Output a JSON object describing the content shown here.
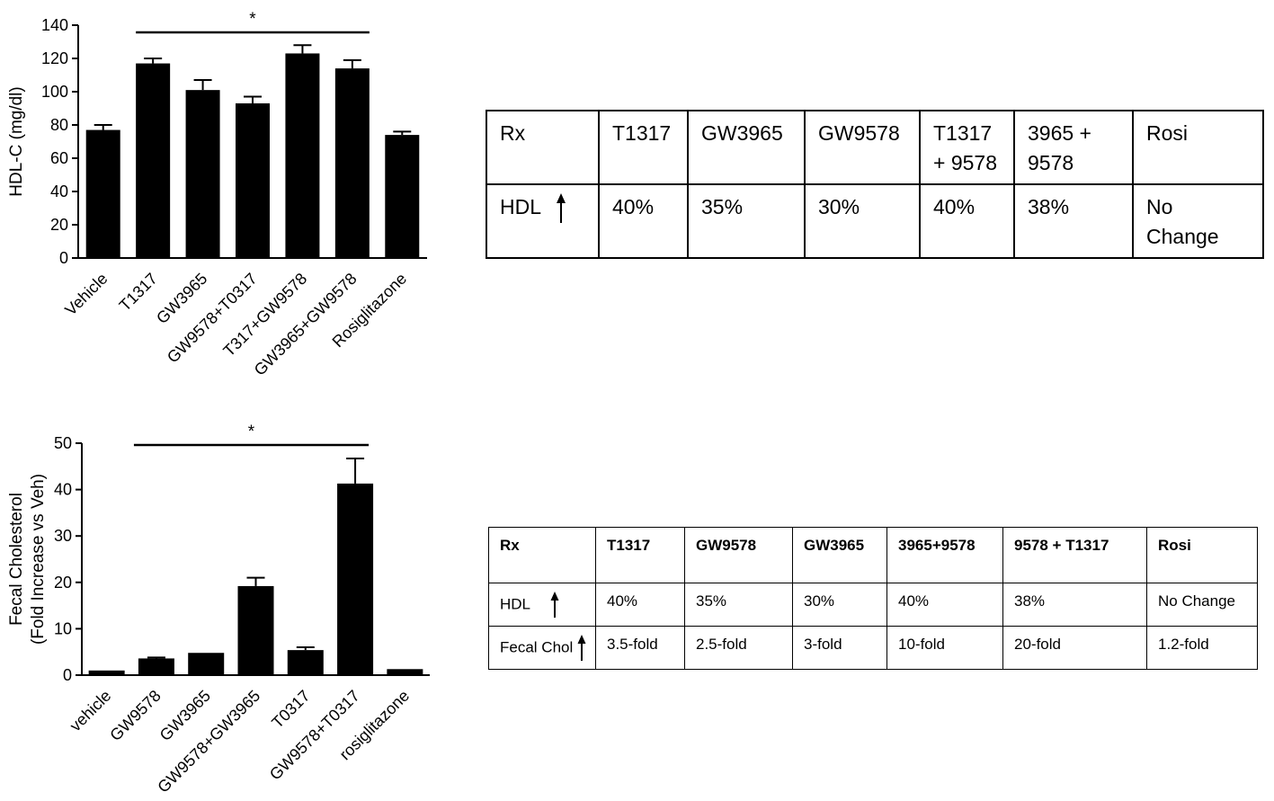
{
  "chart_data": [
    {
      "type": "bar",
      "ylabel": "HDL-C (mg/dl)",
      "ylim": [
        0,
        140
      ],
      "yticks": [
        0,
        20,
        40,
        60,
        80,
        100,
        120,
        140
      ],
      "categories": [
        "Vehicle",
        "T1317",
        "GW3965",
        "GW9578+T0317",
        "T317+GW9578",
        "GW3965+GW9578",
        "Rosiglitazone"
      ],
      "values": [
        77,
        117,
        101,
        93,
        123,
        114,
        74
      ],
      "errors": [
        3,
        3,
        6,
        4,
        5,
        5,
        2
      ],
      "significance": "*",
      "color": "#000000"
    },
    {
      "type": "bar",
      "ylabel": [
        "Fecal Cholesterol",
        "(Fold Increase vs Veh)"
      ],
      "ylim": [
        0,
        50
      ],
      "yticks": [
        0,
        10,
        20,
        30,
        40,
        50
      ],
      "categories": [
        "vehicle",
        "GW9578",
        "GW3965",
        "GW9578+GW3965",
        "T0317",
        "GW9578+T0317",
        "rosiglitazone"
      ],
      "values": [
        1,
        3.6,
        4.8,
        19.2,
        5.4,
        41.3,
        1.3
      ],
      "errors": [
        0,
        0.2,
        0,
        1.8,
        0.6,
        5.4,
        0
      ],
      "significance": "*",
      "color": "#000000"
    }
  ],
  "table1": {
    "header": [
      "Rx",
      "T1317",
      "GW3965",
      "GW9578",
      "T1317\n+ 9578",
      "3965 +\n9578",
      "Rosi"
    ],
    "row": [
      "HDL",
      "40%",
      "35%",
      "30%",
      "40%",
      "38%",
      "No\nChange"
    ]
  },
  "table2": {
    "header": [
      "Rx",
      "T1317",
      "GW9578",
      "GW3965",
      "3965+9578",
      "9578 + T1317",
      "Rosi"
    ],
    "rows": [
      [
        "HDL",
        "40%",
        "35%",
        "30%",
        "40%",
        "38%",
        "No Change"
      ],
      [
        "Fecal Chol",
        "3.5-fold",
        "2.5-fold",
        "3-fold",
        "10-fold",
        "20-fold",
        "1.2-fold"
      ]
    ]
  }
}
